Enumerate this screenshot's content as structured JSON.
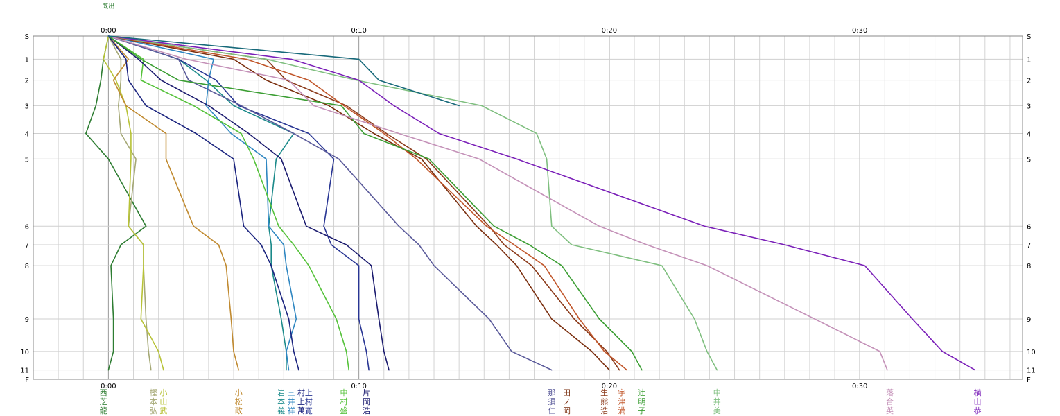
{
  "chart_data": {
    "type": "line",
    "title": "",
    "xlabel": "",
    "ylabel": "",
    "x_unit": "minutes",
    "xlim": [
      -3,
      36.5
    ],
    "x_ticks": [
      {
        "value": 0,
        "label": "0:00"
      },
      {
        "value": 10,
        "label": "0:10"
      },
      {
        "value": 20,
        "label": "0:20"
      },
      {
        "value": 30,
        "label": "0:30"
      }
    ],
    "y_levels": [
      {
        "label": "S",
        "pos": 0
      },
      {
        "label": "1",
        "pos": 5.88
      },
      {
        "label": "2",
        "pos": 11.18
      },
      {
        "label": "3",
        "pos": 17.65
      },
      {
        "label": "4",
        "pos": 24.71
      },
      {
        "label": "5",
        "pos": 31.18
      },
      {
        "label": "6",
        "pos": 48.24
      },
      {
        "label": "7",
        "pos": 52.94
      },
      {
        "label": "8",
        "pos": 58.24
      },
      {
        "label": "9",
        "pos": 71.76
      },
      {
        "label": "10",
        "pos": 80
      },
      {
        "label": "11",
        "pos": 84.71
      },
      {
        "label": "F",
        "pos": 87.06
      }
    ],
    "grid": true,
    "top_label": "既出",
    "series": [
      {
        "name": "西芝龍",
        "color": "#2e7d32",
        "values": [
          0,
          -0.2,
          -0.3,
          -0.5,
          -0.9,
          0,
          1.5,
          0.5,
          0.1,
          0.2,
          0.2,
          0
        ],
        "label": "西 芝 龍",
        "label_x": -0.2
      },
      {
        "name": "樫本弘",
        "color": "#a5a875",
        "values": [
          0,
          0.5,
          0.5,
          0.4,
          0.5,
          1.1,
          0.8,
          1.4,
          1.4,
          1.5,
          1.6,
          1.7
        ],
        "label": "樫 本 弘",
        "label_x": 1.8
      },
      {
        "name": "小山武",
        "color": "#b7c236",
        "values": [
          0,
          -0.2,
          0.3,
          0.7,
          0.9,
          0.9,
          0.8,
          1.4,
          1.4,
          1.3,
          2.0,
          2.2
        ],
        "label": "小 山 武",
        "label_x": 2.2
      },
      {
        "name": "小松政",
        "color": "#c08a30",
        "values": [
          0,
          0.8,
          0.2,
          0.7,
          2.3,
          2.3,
          3.4,
          4.4,
          4.7,
          4.9,
          5.0,
          5.2
        ],
        "label": "小 松 政",
        "label_x": 5.2
      },
      {
        "name": "岩本義",
        "color": "#1b8a8a",
        "values": [
          0,
          2.8,
          3.9,
          5.0,
          7.4,
          6.7,
          6.4,
          6.5,
          6.5,
          6.9,
          7.1,
          7.1
        ],
        "label": "岩 本 義",
        "label_x": 6.9
      },
      {
        "name": "三井祥",
        "color": "#2e86c1",
        "values": [
          0,
          4.2,
          4.0,
          3.9,
          4.9,
          6.3,
          6.4,
          7.0,
          7.1,
          7.5,
          7.1,
          7.2
        ],
        "label": "三 井 祥",
        "label_x": 7.3
      },
      {
        "name": "村上萬",
        "color": "#1a237e",
        "values": [
          0,
          0.7,
          0.8,
          1.5,
          3.5,
          5.0,
          5.4,
          6.1,
          6.5,
          7.2,
          7.4,
          7.6
        ],
        "label": "村 上 萬",
        "label_x": 7.7
      },
      {
        "name": "上村寛",
        "color": "#283593",
        "values": [
          0,
          2.8,
          4.3,
          5.2,
          8.0,
          9.0,
          8.6,
          8.9,
          10.0,
          10.0,
          10.3,
          10.4
        ],
        "label": "上 村 寛",
        "label_x": 8.0
      },
      {
        "name": "中村盛",
        "color": "#55c23a",
        "values": [
          0,
          1.4,
          1.3,
          3.4,
          5.3,
          5.8,
          6.8,
          7.4,
          8.0,
          9.1,
          9.5,
          9.6
        ],
        "label": "中 村 盛",
        "label_x": 9.4
      },
      {
        "name": "片岡浩",
        "color": "#1a1a6e",
        "values": [
          0,
          1.2,
          2.1,
          4.0,
          5.6,
          6.9,
          7.9,
          9.5,
          10.5,
          10.8,
          11.0,
          11.2
        ],
        "label": "片 岡 浩",
        "label_x": 10.3
      },
      {
        "name": "那須仁",
        "color": "#5a5a9a",
        "values": [
          0,
          2.8,
          3.2,
          5.3,
          7.4,
          9.2,
          11.6,
          12.4,
          13.0,
          15.2,
          16.1,
          17.7
        ],
        "label": "那 須 仁",
        "label_x": 17.7
      },
      {
        "name": "田ノ岡",
        "color": "#7a2e0e",
        "values": [
          0,
          5.0,
          6.3,
          8.8,
          10.6,
          12.5,
          14.7,
          15.5,
          16.3,
          17.7,
          19.3,
          20.0
        ],
        "label": "田 ノ 岡",
        "label_x": 18.3
      },
      {
        "name": "生熊浩",
        "color": "#8b3a1a",
        "values": [
          0,
          6.3,
          7.1,
          9.5,
          11.1,
          12.7,
          15.2,
          15.8,
          16.9,
          18.6,
          19.9,
          20.4
        ],
        "label": "生 熊 浩",
        "label_x": 19.8
      },
      {
        "name": "宇津満",
        "color": "#c1562a",
        "values": [
          0,
          5.5,
          8.0,
          9.4,
          11.0,
          12.3,
          15.1,
          16.2,
          17.4,
          18.8,
          19.8,
          20.7
        ],
        "label": "宇 津 満",
        "label_x": 20.5
      },
      {
        "name": "辻明子",
        "color": "#3b9e33",
        "values": [
          0,
          1.3,
          2.8,
          9.3,
          10.2,
          12.8,
          15.4,
          16.8,
          18.1,
          19.6,
          20.9,
          21.3
        ],
        "label": "辻 明 子",
        "label_x": 21.3
      },
      {
        "name": "中井美",
        "color": "#7fbf7f",
        "values": [
          0,
          6.3,
          9.9,
          14.9,
          17.1,
          17.5,
          17.7,
          18.5,
          22.1,
          23.4,
          23.9,
          24.3
        ],
        "label": "中 井 美",
        "label_x": 24.3
      },
      {
        "name": "落合英",
        "color": "#c491b8",
        "values": [
          0,
          3.1,
          7.2,
          8.2,
          11.6,
          14.8,
          19.6,
          21.5,
          23.9,
          28.2,
          30.8,
          31.1
        ],
        "label": "落 合 英",
        "label_x": 31.2
      },
      {
        "name": "横山恭",
        "color": "#7a1fb8",
        "values": [
          0,
          7.3,
          10.0,
          11.4,
          13.2,
          16.3,
          23.8,
          27.0,
          30.2,
          32.1,
          33.3,
          34.6
        ],
        "label": "横 山 恭",
        "label_x": 34.7
      },
      {
        "name": "",
        "color": "#17697a",
        "values": [
          0,
          10.0,
          10.8,
          14.0
        ],
        "label": "",
        "label_x": 0
      }
    ]
  }
}
